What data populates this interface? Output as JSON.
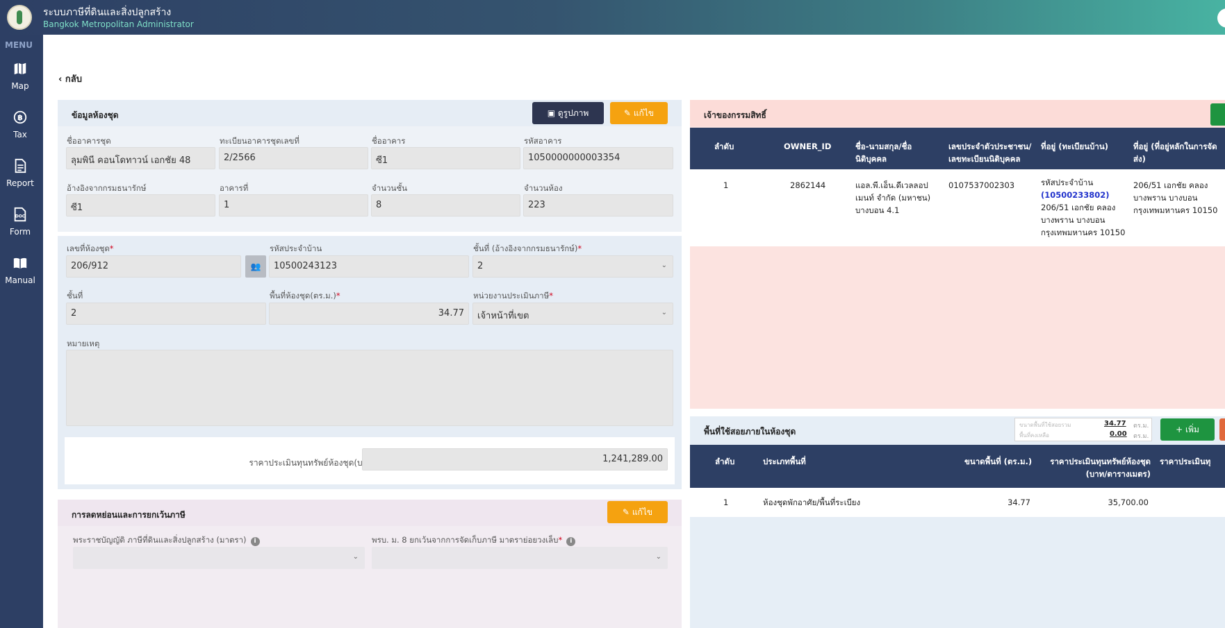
{
  "header": {
    "title": "ระบบภาษีที่ดินและสิ่งปลูกสร้าง",
    "subtitle": "Bangkok Metropolitan Administrator"
  },
  "sidebar": {
    "menu_label": "MENU",
    "items": [
      {
        "label": "Map",
        "icon": "map-icon"
      },
      {
        "label": "Tax",
        "icon": "baht-icon"
      },
      {
        "label": "Report",
        "icon": "document-icon"
      },
      {
        "label": "Form",
        "icon": "doc-file-icon"
      },
      {
        "label": "Manual",
        "icon": "book-icon"
      }
    ]
  },
  "back": {
    "label": "กลับ"
  },
  "condo_info": {
    "title": "ข้อมูลห้องชุด",
    "view_image_label": "ดูรูปภาพ",
    "edit_label": "แก้ไข",
    "fields": {
      "building_name": {
        "label": "ชื่ออาคารชุด",
        "value": "ลุมพินี คอนโดทาวน์ เอกชัย 48"
      },
      "registration_no": {
        "label": "ทะเบียนอาคารชุดเลขที่",
        "value": "2/2566"
      },
      "tower_name": {
        "label": "ชื่ออาคาร",
        "value": "ซี1"
      },
      "building_code": {
        "label": "รหัสอาคาร",
        "value": "1050000000003354"
      },
      "treasury_ref": {
        "label": "อ้างอิงจากกรมธนารักษ์",
        "value": "ซี1"
      },
      "building_no": {
        "label": "อาคารที่",
        "value": "1"
      },
      "floor_count": {
        "label": "จำนวนชั้น",
        "value": "8"
      },
      "room_count": {
        "label": "จำนวนห้อง",
        "value": "223"
      }
    }
  },
  "unit_info": {
    "unit_no": {
      "label": "เลขที่ห้องชุด",
      "value": "206/912"
    },
    "house_code": {
      "label": "รหัสประจำบ้าน",
      "value": "10500243123"
    },
    "floor_treasury": {
      "label": "ชั้นที่ (อ้างอิงจากกรมธนารักษ์)",
      "value": "2"
    },
    "floor": {
      "label": "ชั้นที่",
      "value": "2"
    },
    "area": {
      "label": "พื้นที่ห้องชุด(ตร.ม.)",
      "value": "34.77"
    },
    "assessor": {
      "label": "หน่วยงานประเมินภาษี",
      "value": "เจ้าหน้าที่เขต"
    },
    "remark": {
      "label": "หมายเหตุ",
      "value": ""
    },
    "appraisal": {
      "label": "ราคาประเมินทุนทรัพย์ห้องชุด(บาท)",
      "value": "1,241,289.00"
    }
  },
  "exemption": {
    "title": "การลดหย่อนและการยกเว้นภาษี",
    "edit_label": "แก้ไข",
    "act_label": "พระราชบัญญัติ ภาษีที่ดินและสิ่งปลูกสร้าง (มาตรา)",
    "exempt_label": "พรบ. ม. 8 ยกเว้นจากการจัดเก็บภาษี มาตราย่อยวงเล็บ",
    "act_value": "",
    "exempt_value": ""
  },
  "owners": {
    "title": "เจ้าของกรรมสิทธิ์",
    "columns": [
      "ลำดับ",
      "OWNER_ID",
      "ชื่อ-นามสกุล/ชื่อนิติบุคคล",
      "เลขประจำตัวประชาชน/เลขทะเบียนนิติบุคคล",
      "ที่อยู่ (ทะเบียนบ้าน)",
      "ที่อยู่ (ที่อยู่หลักในการจัดส่ง)"
    ],
    "rows": [
      {
        "no": "1",
        "owner_id": "2862144",
        "name": "แอล.พี.เอ็น.ดีเวลลอปเมนท์ จำกัด (มหาชน) บางบอน 4.1",
        "tax_id": "0107537002303",
        "house_code_prefix": "รหัสประจำบ้าน",
        "house_code": "(10500233802)",
        "address": "206/51 เอกชัย คลองบางพราน บางบอน กรุงเทพมหานคร 10150",
        "mailing_address": "206/51 เอกชัย คลองบางพราน บางบอน กรุงเทพมหานคร 10150"
      }
    ]
  },
  "usage": {
    "title": "พื้นที่ใช้สอยภายในห้องชุด",
    "summary": [
      {
        "label": "ขนาดพื้นที่ใช้สอยรวม",
        "value": "34.77",
        "unit": "ตร.ม."
      },
      {
        "label": "พื้นที่คงเหลือ",
        "value": "0.00",
        "unit": "ตร.ม."
      }
    ],
    "add_label": "เพิ่ม",
    "columns": [
      "ลำดับ",
      "ประเภทพื้นที่",
      "ขนาดพื้นที่ (ตร.ม.)",
      "ราคาประเมินทุนทรัพย์ห้องชุด (บาท/ตารางเมตร)",
      "ราคาประเมินทุ"
    ],
    "rows": [
      {
        "no": "1",
        "type": "ห้องชุดพักอาศัย/พื้นที่ระเบียง",
        "area": "34.77",
        "price": "35,700.00"
      }
    ]
  }
}
